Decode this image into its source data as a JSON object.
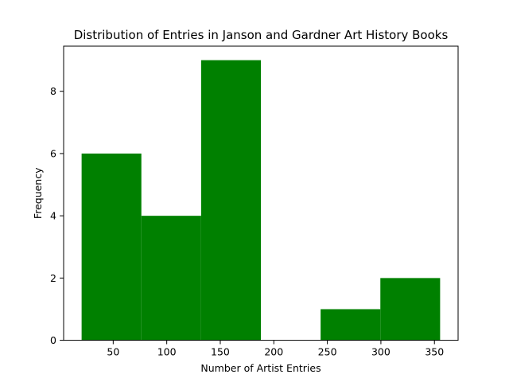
{
  "chart_data": {
    "type": "bar",
    "title": "Distribution of Entries in Janson and Gardner Art History Books",
    "xlabel": "Number of Artist Entries",
    "ylabel": "Frequency",
    "bins": [
      {
        "x0": 20.5,
        "x1": 76.3,
        "value": 6
      },
      {
        "x0": 76.3,
        "x1": 132.1,
        "value": 4
      },
      {
        "x0": 132.1,
        "x1": 187.9,
        "value": 9
      },
      {
        "x0": 187.9,
        "x1": 243.7,
        "value": 0
      },
      {
        "x0": 243.7,
        "x1": 299.5,
        "value": 1
      },
      {
        "x0": 299.5,
        "x1": 355.3,
        "value": 2
      }
    ],
    "xlim": [
      3.7,
      372.1
    ],
    "ylim": [
      0,
      9.45
    ],
    "xticks": [
      50,
      100,
      150,
      200,
      250,
      300,
      350
    ],
    "yticks": [
      0,
      2,
      4,
      6,
      8
    ],
    "bar_color": "#008000",
    "grid": false
  }
}
